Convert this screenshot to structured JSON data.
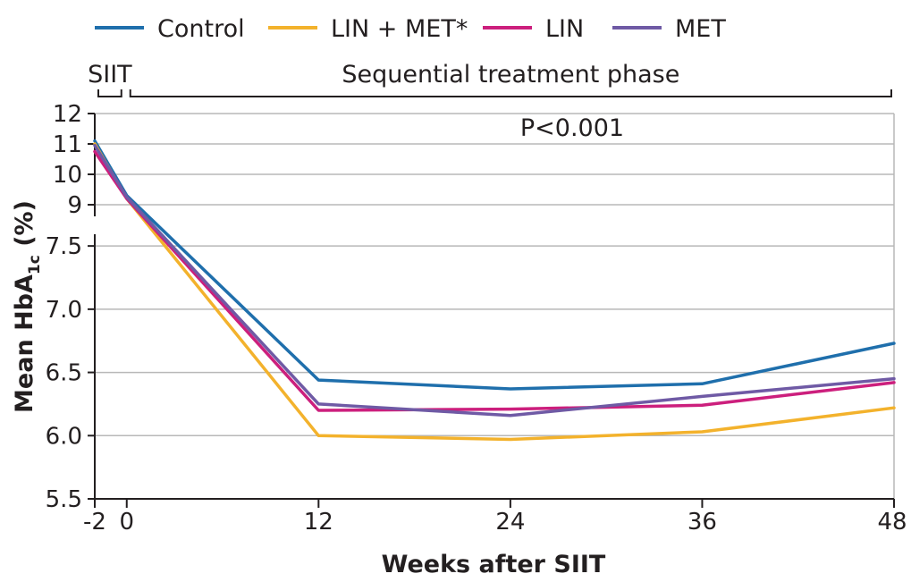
{
  "chart_data": {
    "type": "line",
    "x": [
      -2,
      0,
      12,
      24,
      36,
      48
    ],
    "x_tick_labels": [
      "-2",
      "0",
      "12",
      "24",
      "36",
      "48"
    ],
    "xlabel": "Weeks after SIIT",
    "ylabel": {
      "main": "Mean HbA",
      "subscript": "1c",
      "suffix": " (%)"
    },
    "y_upper_ticks": [
      "12",
      "11",
      "10",
      "9"
    ],
    "y_lower_ticks": [
      "7.5",
      "7.0",
      "6.5",
      "6.0",
      "5.5"
    ],
    "ylim_upper": [
      9,
      12
    ],
    "ylim_lower": [
      5.5,
      7.6
    ],
    "axis_break": true,
    "grid": true,
    "legend_position": "top",
    "phases": [
      {
        "label": "SIIT",
        "x_range": [
          -2,
          0
        ]
      },
      {
        "label": "Sequential treatment phase",
        "x_range": [
          0,
          48
        ]
      }
    ],
    "annotation": "P<0.001",
    "series": [
      {
        "name": "Control",
        "color": "#1f6fac",
        "values": [
          11.1,
          9.3,
          6.44,
          6.37,
          6.41,
          6.73
        ]
      },
      {
        "name": "LIN + MET*",
        "color": "#f3b22c",
        "values": [
          11.0,
          9.2,
          6.0,
          5.97,
          6.03,
          6.22
        ]
      },
      {
        "name": "LIN",
        "color": "#cc1f7d",
        "values": [
          10.75,
          9.2,
          6.2,
          6.21,
          6.24,
          6.42
        ]
      },
      {
        "name": "MET",
        "color": "#6f5aa5",
        "values": [
          10.95,
          9.25,
          6.25,
          6.16,
          6.31,
          6.45
        ]
      }
    ]
  }
}
